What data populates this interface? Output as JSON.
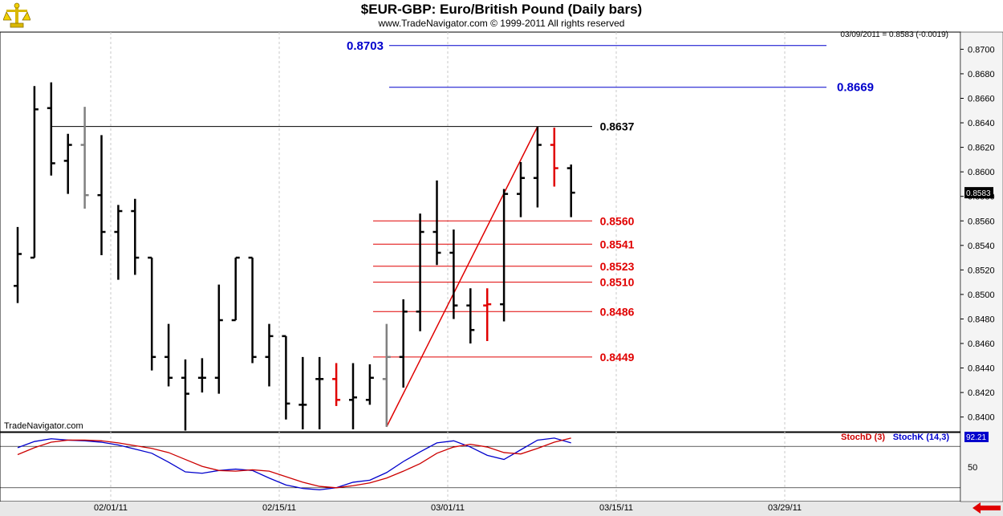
{
  "header": {
    "title": "$EUR-GBP:  Euro/British Pound  (Daily bars)",
    "copyright": "www.TradeNavigator.com © 1999-2011 All rights reserved",
    "quote": "03/09/2011 = 0.8583 (-0.0019)",
    "watermark": "TradeNavigator.com"
  },
  "colors": {
    "background": "#ffffff",
    "bar": "#000000",
    "bar_gray": "#808080",
    "bar_red": "#e00000",
    "level_blue": "#0000cc",
    "level_red": "#e00000",
    "level_black": "#000000",
    "stoch_d": "#cc0000",
    "stoch_k": "#0000cc",
    "grid": "#c8c8c8"
  },
  "chart_data": [
    {
      "type": "ohlc",
      "title": "$EUR-GBP:  Euro/British Pound  (Daily bars)",
      "x_tick_labels": [
        "02/01/11",
        "02/15/11",
        "03/01/11",
        "03/15/11",
        "03/29/11"
      ],
      "y_tick_labels": [
        "0.8400",
        "0.8420",
        "0.8440",
        "0.8460",
        "0.8480",
        "0.8500",
        "0.8520",
        "0.8540",
        "0.8560",
        "0.8580",
        "0.8600",
        "0.8620",
        "0.8640",
        "0.8660",
        "0.8680",
        "0.8700"
      ],
      "ylim": [
        0.8388,
        0.8714
      ],
      "last_price_label": "0.8583",
      "bars": [
        {
          "date": "01/14/11",
          "open": 0.8507,
          "high": 0.8555,
          "low": 0.8493,
          "close": 0.8533,
          "color": "black"
        },
        {
          "date": "01/17/11",
          "open": 0.853,
          "high": 0.867,
          "low": 0.853,
          "close": 0.8651,
          "color": "black"
        },
        {
          "date": "01/18/11",
          "open": 0.8652,
          "high": 0.8673,
          "low": 0.8597,
          "close": 0.8607,
          "color": "black"
        },
        {
          "date": "01/19/11",
          "open": 0.8609,
          "high": 0.8631,
          "low": 0.8582,
          "close": 0.8622,
          "color": "black"
        },
        {
          "date": "01/20/11",
          "open": 0.8622,
          "high": 0.8653,
          "low": 0.857,
          "close": 0.8581,
          "color": "gray"
        },
        {
          "date": "01/21/11",
          "open": 0.8581,
          "high": 0.863,
          "low": 0.8532,
          "close": 0.8551,
          "color": "black"
        },
        {
          "date": "01/24/11",
          "open": 0.8551,
          "high": 0.8573,
          "low": 0.8512,
          "close": 0.8568,
          "color": "black"
        },
        {
          "date": "01/25/11",
          "open": 0.8568,
          "high": 0.8578,
          "low": 0.8516,
          "close": 0.853,
          "color": "black"
        },
        {
          "date": "01/26/11",
          "open": 0.853,
          "high": 0.853,
          "low": 0.8438,
          "close": 0.8449,
          "color": "black"
        },
        {
          "date": "01/27/11",
          "open": 0.8449,
          "high": 0.8476,
          "low": 0.8425,
          "close": 0.8432,
          "color": "black"
        },
        {
          "date": "01/28/11",
          "open": 0.8432,
          "high": 0.8447,
          "low": 0.8389,
          "close": 0.8419,
          "color": "black"
        },
        {
          "date": "01/31/11",
          "open": 0.8432,
          "high": 0.8448,
          "low": 0.842,
          "close": 0.8432,
          "color": "black"
        },
        {
          "date": "02/01/11",
          "open": 0.8432,
          "high": 0.8508,
          "low": 0.8419,
          "close": 0.8479,
          "color": "black"
        },
        {
          "date": "02/02/11",
          "open": 0.8479,
          "high": 0.853,
          "low": 0.8479,
          "close": 0.853,
          "color": "black"
        },
        {
          "date": "02/03/11",
          "open": 0.853,
          "high": 0.853,
          "low": 0.8444,
          "close": 0.8449,
          "color": "black"
        },
        {
          "date": "02/04/11",
          "open": 0.8449,
          "high": 0.8476,
          "low": 0.8425,
          "close": 0.8466,
          "color": "black"
        },
        {
          "date": "02/07/11",
          "open": 0.8466,
          "high": 0.8466,
          "low": 0.8398,
          "close": 0.8411,
          "color": "black"
        },
        {
          "date": "02/08/11",
          "open": 0.841,
          "high": 0.8449,
          "low": 0.839,
          "close": 0.841,
          "color": "black"
        },
        {
          "date": "02/09/11",
          "open": 0.8431,
          "high": 0.8449,
          "low": 0.839,
          "close": 0.8431,
          "color": "black"
        },
        {
          "date": "02/10/11",
          "open": 0.8431,
          "high": 0.8444,
          "low": 0.8409,
          "close": 0.8414,
          "color": "red"
        },
        {
          "date": "02/11/11",
          "open": 0.8414,
          "high": 0.8444,
          "low": 0.839,
          "close": 0.8416,
          "color": "black"
        },
        {
          "date": "02/14/11",
          "open": 0.8414,
          "high": 0.8443,
          "low": 0.841,
          "close": 0.8432,
          "color": "black"
        },
        {
          "date": "02/15/11",
          "open": 0.8431,
          "high": 0.8476,
          "low": 0.8392,
          "close": 0.8449,
          "color": "gray"
        },
        {
          "date": "02/16/11",
          "open": 0.8449,
          "high": 0.8496,
          "low": 0.8424,
          "close": 0.8486,
          "color": "black"
        },
        {
          "date": "02/17/11",
          "open": 0.8486,
          "high": 0.8566,
          "low": 0.847,
          "close": 0.8551,
          "color": "black"
        },
        {
          "date": "02/18/11",
          "open": 0.8551,
          "high": 0.8593,
          "low": 0.8524,
          "close": 0.8534,
          "color": "black"
        },
        {
          "date": "02/21/11",
          "open": 0.8534,
          "high": 0.8553,
          "low": 0.848,
          "close": 0.8491,
          "color": "black"
        },
        {
          "date": "02/22/11",
          "open": 0.8491,
          "high": 0.8505,
          "low": 0.846,
          "close": 0.8471,
          "color": "black"
        },
        {
          "date": "02/23/11",
          "open": 0.8491,
          "high": 0.8505,
          "low": 0.8462,
          "close": 0.8492,
          "color": "red"
        },
        {
          "date": "02/24/11",
          "open": 0.8492,
          "high": 0.8586,
          "low": 0.8478,
          "close": 0.8582,
          "color": "black"
        },
        {
          "date": "02/25/11",
          "open": 0.8582,
          "high": 0.8608,
          "low": 0.8563,
          "close": 0.8595,
          "color": "black"
        },
        {
          "date": "02/28/11",
          "open": 0.8595,
          "high": 0.8637,
          "low": 0.8571,
          "close": 0.8622,
          "color": "black"
        },
        {
          "date": "03/01/11",
          "open": 0.8622,
          "high": 0.8636,
          "low": 0.8588,
          "close": 0.8603,
          "color": "red"
        },
        {
          "date": "03/02/11",
          "open": 0.8603,
          "high": 0.8606,
          "low": 0.8563,
          "close": 0.8583,
          "color": "black"
        }
      ],
      "levels": [
        {
          "value": 0.8703,
          "label": "0.8703",
          "color": "blue",
          "side": "left"
        },
        {
          "value": 0.8669,
          "label": "0.8669",
          "color": "blue",
          "side": "right"
        },
        {
          "value": 0.8637,
          "label": "0.8637",
          "color": "black",
          "side": "right"
        },
        {
          "value": 0.856,
          "label": "0.8560",
          "color": "red",
          "side": "right"
        },
        {
          "value": 0.8541,
          "label": "0.8541",
          "color": "red",
          "side": "right"
        },
        {
          "value": 0.8523,
          "label": "0.8523",
          "color": "red",
          "side": "right"
        },
        {
          "value": 0.851,
          "label": "0.8510",
          "color": "red",
          "side": "right"
        },
        {
          "value": 0.8486,
          "label": "0.8486",
          "color": "red",
          "side": "right"
        },
        {
          "value": 0.8449,
          "label": "0.8449",
          "color": "red",
          "side": "right"
        }
      ],
      "trendline": {
        "from": {
          "bar": 22,
          "value": 0.8392
        },
        "to": {
          "bar": 31,
          "value": 0.8637
        },
        "color": "red"
      },
      "grid": true
    },
    {
      "type": "line",
      "title": "",
      "legend": [
        "StochD (3)",
        "StochK (14,3)"
      ],
      "y_tick_labels": [
        "50"
      ],
      "ylim": [
        0,
        100
      ],
      "last_value_label": "92.21",
      "reference_lines": [
        20,
        80
      ],
      "series": [
        {
          "name": "StochK (14,3)",
          "color": "blue",
          "values": [
            78,
            87,
            91,
            89,
            88,
            86,
            82,
            76,
            70,
            57,
            43,
            41,
            45,
            47,
            45,
            34,
            24,
            19,
            17,
            20,
            28,
            31,
            42,
            58,
            72,
            85,
            88,
            79,
            67,
            61,
            75,
            89,
            92,
            85
          ]
        },
        {
          "name": "StochD (3)",
          "color": "red",
          "values": [
            68,
            78,
            86,
            89,
            89,
            88,
            85,
            81,
            77,
            71,
            61,
            51,
            45,
            44,
            46,
            44,
            36,
            28,
            22,
            20,
            23,
            27,
            34,
            44,
            55,
            70,
            79,
            83,
            79,
            71,
            69,
            77,
            86,
            92
          ]
        }
      ]
    }
  ]
}
